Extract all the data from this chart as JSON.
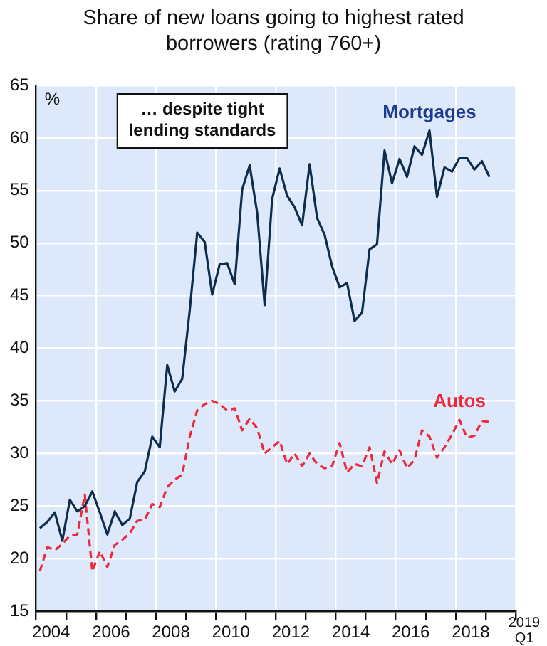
{
  "chart_data": {
    "type": "line",
    "title": "Share of new loans going to highest rated borrowers (rating 760+)",
    "ylabel": "%",
    "annotations": [
      "… despite tight lending standards",
      "2019 Q1"
    ],
    "x": [
      2004.125,
      2004.375,
      2004.625,
      2004.875,
      2005.125,
      2005.375,
      2005.625,
      2005.875,
      2006.125,
      2006.375,
      2006.625,
      2006.875,
      2007.125,
      2007.375,
      2007.625,
      2007.875,
      2008.125,
      2008.375,
      2008.625,
      2008.875,
      2009.125,
      2009.375,
      2009.625,
      2009.875,
      2010.125,
      2010.375,
      2010.625,
      2010.875,
      2011.125,
      2011.375,
      2011.625,
      2011.875,
      2012.125,
      2012.375,
      2012.625,
      2012.875,
      2013.125,
      2013.375,
      2013.625,
      2013.875,
      2014.125,
      2014.375,
      2014.625,
      2014.875,
      2015.125,
      2015.375,
      2015.625,
      2015.875,
      2016.125,
      2016.375,
      2016.625,
      2016.875,
      2017.125,
      2017.375,
      2017.625,
      2017.875,
      2018.125,
      2018.375,
      2018.625,
      2018.875,
      2019.125
    ],
    "series": [
      {
        "name": "Mortgages",
        "color": "#0e2c4c",
        "line_style": "solid",
        "values": [
          22.9,
          23.5,
          24.4,
          21.7,
          25.6,
          24.5,
          25.0,
          26.4,
          24.4,
          22.3,
          24.5,
          23.2,
          23.8,
          27.3,
          28.3,
          31.6,
          30.6,
          38.4,
          35.9,
          37.1,
          43.6,
          51.0,
          50.1,
          45.1,
          48.0,
          48.1,
          46.1,
          55.1,
          57.4,
          52.9,
          44.1,
          54.2,
          57.1,
          54.5,
          53.4,
          51.7,
          57.5,
          52.4,
          50.8,
          47.8,
          45.8,
          46.2,
          42.6,
          43.4,
          49.4,
          49.9,
          58.8,
          55.7,
          58.0,
          56.3,
          59.2,
          58.4,
          60.7,
          54.4,
          57.2,
          56.8,
          58.1,
          58.1,
          57.0,
          57.8,
          56.3
        ]
      },
      {
        "name": "Autos",
        "color": "#ee2a3a",
        "line_style": "dashed",
        "values": [
          18.8,
          21.1,
          20.8,
          21.4,
          22.2,
          22.3,
          26.1,
          18.8,
          20.7,
          19.2,
          21.3,
          21.8,
          22.4,
          23.6,
          23.7,
          25.2,
          24.9,
          26.8,
          27.5,
          28.0,
          31.6,
          34.1,
          34.7,
          35.0,
          34.7,
          34.1,
          34.3,
          32.2,
          33.3,
          32.4,
          30.0,
          30.6,
          31.2,
          29.0,
          30.0,
          28.8,
          30.0,
          29.0,
          28.6,
          28.8,
          31.0,
          28.2,
          29.0,
          28.8,
          30.6,
          27.2,
          30.2,
          29.0,
          30.3,
          28.6,
          29.4,
          32.2,
          31.6,
          29.6,
          30.6,
          31.8,
          33.2,
          31.5,
          31.7,
          33.1,
          33.0
        ]
      }
    ],
    "xlim": [
      2004,
      2020
    ],
    "xticks": [
      {
        "value": 2004,
        "label": null
      },
      {
        "value": 2004.5,
        "label": "2004"
      },
      {
        "value": 2005,
        "label": null
      },
      {
        "value": 2006,
        "label": null
      },
      {
        "value": 2006.5,
        "label": "2006"
      },
      {
        "value": 2007,
        "label": null
      },
      {
        "value": 2008,
        "label": null
      },
      {
        "value": 2008.5,
        "label": "2008"
      },
      {
        "value": 2009,
        "label": null
      },
      {
        "value": 2010,
        "label": null
      },
      {
        "value": 2010.5,
        "label": "2010"
      },
      {
        "value": 2011,
        "label": null
      },
      {
        "value": 2012,
        "label": null
      },
      {
        "value": 2012.5,
        "label": "2012"
      },
      {
        "value": 2013,
        "label": null
      },
      {
        "value": 2014,
        "label": null
      },
      {
        "value": 2014.5,
        "label": "2014"
      },
      {
        "value": 2015,
        "label": null
      },
      {
        "value": 2016,
        "label": null
      },
      {
        "value": 2016.5,
        "label": "2016"
      },
      {
        "value": 2017,
        "label": null
      },
      {
        "value": 2018,
        "label": null
      },
      {
        "value": 2018.5,
        "label": "2018"
      },
      {
        "value": 2019,
        "label": null
      },
      {
        "value": 2020,
        "label": null
      }
    ],
    "ylim": [
      15,
      65
    ],
    "yticks": [
      15,
      20,
      25,
      30,
      35,
      40,
      45,
      50,
      55,
      60,
      65
    ],
    "grid": true,
    "legend": false,
    "marker": "none"
  }
}
